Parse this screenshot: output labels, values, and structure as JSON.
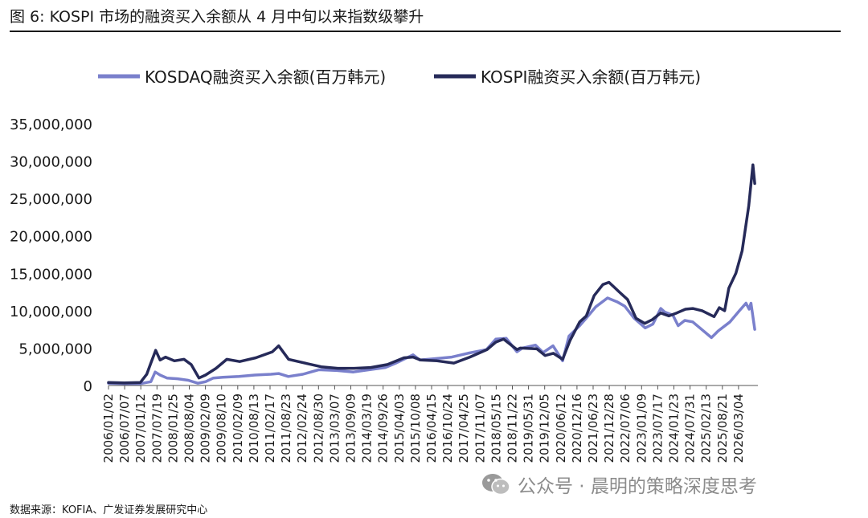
{
  "figure": {
    "title": "图 6: KOSPI 市场的融资买入余额从 4 月中旬以来指数级攀升",
    "source": "数据来源：KOFIA、广发证券发展研究中心",
    "watermark": "公众号 · 晨明的策略深度思考",
    "watermark_icon": "wechat-icon"
  },
  "colors": {
    "kosdaq": "#7a80cc",
    "kospi": "#262a59",
    "axis": "#555555",
    "text": "#1a1a1a"
  },
  "chart_data": {
    "type": "line",
    "title": "",
    "xlabel": "",
    "ylabel": "",
    "ylim": [
      0,
      35000000
    ],
    "yticks": [
      0,
      5000000,
      10000000,
      15000000,
      20000000,
      25000000,
      30000000,
      35000000
    ],
    "ytick_labels": [
      "0",
      "5,000,000",
      "10,000,000",
      "15,000,000",
      "20,000,000",
      "25,000,000",
      "30,000,000",
      "35,000,000"
    ],
    "xlim": [
      "2006-01-02",
      "2026-04-30"
    ],
    "xtick_labels": [
      "2006/01/02",
      "2006/07/07",
      "2007/01/12",
      "2007/07/19",
      "2008/01/25",
      "2008/08/04",
      "2009/02/09",
      "2009/08/10",
      "2010/02/09",
      "2010/08/13",
      "2011/02/17",
      "2011/08/23",
      "2012/02/24",
      "2012/08/30",
      "2013/03/07",
      "2013/09/09",
      "2014/03/19",
      "2014/09/26",
      "2015/04/03",
      "2015/10/08",
      "2016/04/15",
      "2016/10/24",
      "2017/04/25",
      "2017/11/07",
      "2018/05/15",
      "2018/11/22",
      "2019/05/31",
      "2019/12/05",
      "2020/06/12",
      "2020/12/16",
      "2021/06/23",
      "2021/12/28",
      "2022/07/06",
      "2023/01/09",
      "2023/07/17",
      "2024/01/23",
      "2024/07/31",
      "2025/02/13",
      "2025/08/21",
      "2026/03/04"
    ],
    "grid": false,
    "legend": "top",
    "series": [
      {
        "name": "KOSDAQ融资买入余额(百万韩元)",
        "color": "#7a80cc",
        "points": [
          [
            "2006-01-02",
            300000
          ],
          [
            "2006-07-01",
            250000
          ],
          [
            "2007-01-01",
            250000
          ],
          [
            "2007-05-01",
            500000
          ],
          [
            "2007-06-20",
            1800000
          ],
          [
            "2007-08-15",
            1400000
          ],
          [
            "2007-11-01",
            1000000
          ],
          [
            "2008-03-01",
            900000
          ],
          [
            "2008-07-01",
            700000
          ],
          [
            "2008-10-20",
            300000
          ],
          [
            "2009-01-15",
            500000
          ],
          [
            "2009-04-15",
            1000000
          ],
          [
            "2009-08-01",
            1100000
          ],
          [
            "2010-02-01",
            1200000
          ],
          [
            "2010-08-01",
            1400000
          ],
          [
            "2011-02-01",
            1500000
          ],
          [
            "2011-05-01",
            1600000
          ],
          [
            "2011-08-20",
            1200000
          ],
          [
            "2012-02-01",
            1500000
          ],
          [
            "2012-08-01",
            2100000
          ],
          [
            "2013-03-01",
            2000000
          ],
          [
            "2013-09-01",
            1800000
          ],
          [
            "2014-03-01",
            2100000
          ],
          [
            "2014-09-01",
            2400000
          ],
          [
            "2015-01-01",
            3000000
          ],
          [
            "2015-07-15",
            4100000
          ],
          [
            "2015-10-01",
            3400000
          ],
          [
            "2016-04-01",
            3600000
          ],
          [
            "2016-10-01",
            3800000
          ],
          [
            "2017-04-01",
            4300000
          ],
          [
            "2017-11-01",
            4800000
          ],
          [
            "2018-02-15",
            6200000
          ],
          [
            "2018-06-15",
            6300000
          ],
          [
            "2018-10-15",
            4500000
          ],
          [
            "2018-12-15",
            5000000
          ],
          [
            "2019-05-15",
            5400000
          ],
          [
            "2019-08-10",
            4400000
          ],
          [
            "2019-12-01",
            5300000
          ],
          [
            "2020-03-20",
            3300000
          ],
          [
            "2020-06-01",
            6600000
          ],
          [
            "2020-10-01",
            8000000
          ],
          [
            "2020-12-15",
            9000000
          ],
          [
            "2021-04-01",
            10500000
          ],
          [
            "2021-08-15",
            11700000
          ],
          [
            "2021-12-01",
            11200000
          ],
          [
            "2022-03-01",
            10600000
          ],
          [
            "2022-06-15",
            9000000
          ],
          [
            "2022-10-20",
            7700000
          ],
          [
            "2023-01-15",
            8200000
          ],
          [
            "2023-04-15",
            10300000
          ],
          [
            "2023-06-01",
            9800000
          ],
          [
            "2023-09-01",
            9400000
          ],
          [
            "2023-11-01",
            8000000
          ],
          [
            "2024-01-15",
            8700000
          ],
          [
            "2024-04-15",
            8500000
          ],
          [
            "2024-08-05",
            7400000
          ],
          [
            "2024-11-15",
            6400000
          ],
          [
            "2025-02-01",
            7300000
          ],
          [
            "2025-06-15",
            8500000
          ],
          [
            "2025-10-01",
            10000000
          ],
          [
            "2025-12-15",
            11000000
          ],
          [
            "2026-01-20",
            10200000
          ],
          [
            "2026-02-10",
            11000000
          ],
          [
            "2026-03-25",
            7500000
          ]
        ]
      },
      {
        "name": "KOSPI融资买入余额(百万韩元)",
        "color": "#262a59",
        "points": [
          [
            "2006-01-02",
            400000
          ],
          [
            "2006-07-01",
            350000
          ],
          [
            "2007-01-01",
            400000
          ],
          [
            "2007-03-15",
            1500000
          ],
          [
            "2007-05-01",
            3000000
          ],
          [
            "2007-06-25",
            4700000
          ],
          [
            "2007-08-15",
            3400000
          ],
          [
            "2007-10-15",
            3800000
          ],
          [
            "2008-01-25",
            3300000
          ],
          [
            "2008-05-15",
            3500000
          ],
          [
            "2008-08-04",
            2800000
          ],
          [
            "2008-11-01",
            1000000
          ],
          [
            "2009-01-15",
            1400000
          ],
          [
            "2009-05-15",
            2300000
          ],
          [
            "2009-09-15",
            3500000
          ],
          [
            "2010-02-09",
            3200000
          ],
          [
            "2010-08-13",
            3700000
          ],
          [
            "2011-02-17",
            4500000
          ],
          [
            "2011-05-01",
            5300000
          ],
          [
            "2011-08-23",
            3500000
          ],
          [
            "2012-02-24",
            3000000
          ],
          [
            "2012-08-30",
            2500000
          ],
          [
            "2013-03-07",
            2300000
          ],
          [
            "2013-09-09",
            2300000
          ],
          [
            "2014-03-19",
            2400000
          ],
          [
            "2014-09-26",
            2800000
          ],
          [
            "2015-04-03",
            3700000
          ],
          [
            "2015-07-15",
            3800000
          ],
          [
            "2015-10-08",
            3400000
          ],
          [
            "2016-04-15",
            3300000
          ],
          [
            "2016-10-24",
            3000000
          ],
          [
            "2017-04-25",
            3800000
          ],
          [
            "2017-11-07",
            4800000
          ],
          [
            "2018-02-15",
            5800000
          ],
          [
            "2018-05-15",
            6200000
          ],
          [
            "2018-10-15",
            4800000
          ],
          [
            "2018-11-22",
            5000000
          ],
          [
            "2019-05-31",
            4900000
          ],
          [
            "2019-09-01",
            4000000
          ],
          [
            "2019-12-05",
            4300000
          ],
          [
            "2020-03-20",
            3500000
          ],
          [
            "2020-06-12",
            6000000
          ],
          [
            "2020-10-01",
            8500000
          ],
          [
            "2020-12-16",
            9300000
          ],
          [
            "2021-03-15",
            12000000
          ],
          [
            "2021-06-23",
            13500000
          ],
          [
            "2021-09-01",
            13800000
          ],
          [
            "2021-12-28",
            12500000
          ],
          [
            "2022-04-01",
            11500000
          ],
          [
            "2022-07-06",
            9000000
          ],
          [
            "2022-10-15",
            8300000
          ],
          [
            "2023-01-09",
            8800000
          ],
          [
            "2023-04-15",
            9700000
          ],
          [
            "2023-07-17",
            9300000
          ],
          [
            "2023-10-15",
            9700000
          ],
          [
            "2024-01-23",
            10200000
          ],
          [
            "2024-04-15",
            10300000
          ],
          [
            "2024-07-31",
            10000000
          ],
          [
            "2024-12-15",
            9200000
          ],
          [
            "2025-02-13",
            10400000
          ],
          [
            "2025-04-15",
            10000000
          ],
          [
            "2025-06-01",
            13000000
          ],
          [
            "2025-08-21",
            15000000
          ],
          [
            "2025-11-01",
            18000000
          ],
          [
            "2026-01-15",
            24000000
          ],
          [
            "2026-03-04",
            29500000
          ],
          [
            "2026-03-25",
            27000000
          ]
        ]
      }
    ]
  }
}
